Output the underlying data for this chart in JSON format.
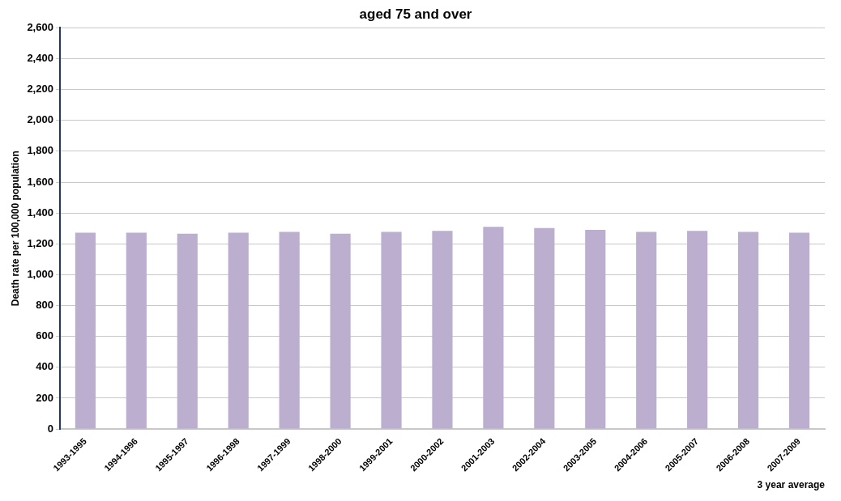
{
  "chart_data": {
    "type": "bar",
    "title": "aged 75 and over",
    "xlabel": "3 year average",
    "ylabel": "Death rate per 100,000 population",
    "categories": [
      "1993-1995",
      "1994-1996",
      "1995-1997",
      "1996-1998",
      "1997-1999",
      "1998-2000",
      "1999-2001",
      "2000-2002",
      "2001-2003",
      "2002-2004",
      "2003-2005",
      "2004-2006",
      "2005-2007",
      "2006-2008",
      "2007-2009"
    ],
    "values": [
      1272,
      1272,
      1266,
      1272,
      1278,
      1266,
      1278,
      1284,
      1310,
      1303,
      1291,
      1278,
      1284,
      1278,
      1272
    ],
    "color": "#bcaecf",
    "ylim": [
      0,
      2600
    ],
    "yticks": [
      0,
      200,
      400,
      600,
      800,
      {
        "value": 1000,
        "label": "1,000"
      },
      {
        "value": 1200,
        "label": "1,200"
      },
      {
        "value": 1400,
        "label": "1,400"
      },
      {
        "value": 1600,
        "label": "1,600"
      },
      {
        "value": 1800,
        "label": "1,800"
      },
      {
        "value": 2000,
        "label": "2,000"
      },
      {
        "value": 2200,
        "label": "2,200"
      },
      {
        "value": 2400,
        "label": "2,400"
      },
      {
        "value": 2600,
        "label": "2,600"
      }
    ],
    "grid": "y",
    "legend": false
  }
}
